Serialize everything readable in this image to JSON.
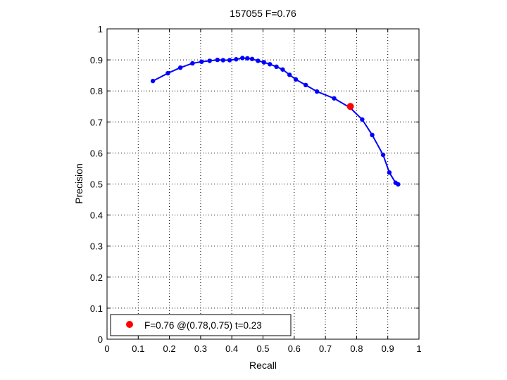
{
  "chart_data": {
    "type": "line",
    "title": "157055 F=0.76",
    "xlabel": "Recall",
    "ylabel": "Precision",
    "xlim": [
      0,
      1
    ],
    "ylim": [
      0,
      1
    ],
    "grid": true,
    "xticks": [
      0,
      0.1,
      0.2,
      0.3,
      0.4,
      0.5,
      0.6,
      0.7,
      0.8,
      0.9,
      1
    ],
    "yticks": [
      0,
      0.1,
      0.2,
      0.3,
      0.4,
      0.5,
      0.6,
      0.7,
      0.8,
      0.9,
      1
    ],
    "xtick_labels": [
      "0",
      "0.1",
      "0.2",
      "0.3",
      "0.4",
      "0.5",
      "0.6",
      "0.7",
      "0.8",
      "0.9",
      "1"
    ],
    "ytick_labels": [
      "0",
      "0.1",
      "0.2",
      "0.3",
      "0.4",
      "0.5",
      "0.6",
      "0.7",
      "0.8",
      "0.9",
      "1"
    ],
    "series": [
      {
        "color": "#0000ff",
        "marker": "dot",
        "x": [
          0.147,
          0.195,
          0.235,
          0.274,
          0.303,
          0.329,
          0.354,
          0.372,
          0.393,
          0.414,
          0.434,
          0.45,
          0.465,
          0.484,
          0.503,
          0.522,
          0.543,
          0.563,
          0.585,
          0.605,
          0.637,
          0.673,
          0.728,
          0.779,
          0.818,
          0.85,
          0.885,
          0.905,
          0.925,
          0.933
        ],
        "y": [
          0.832,
          0.857,
          0.875,
          0.889,
          0.894,
          0.897,
          0.9,
          0.899,
          0.899,
          0.902,
          0.906,
          0.905,
          0.903,
          0.897,
          0.892,
          0.886,
          0.878,
          0.869,
          0.852,
          0.837,
          0.819,
          0.798,
          0.776,
          0.746,
          0.708,
          0.658,
          0.594,
          0.537,
          0.504,
          0.499
        ]
      }
    ],
    "highlight": {
      "x": 0.78,
      "y": 0.75,
      "color": "#ff0000"
    },
    "legend": {
      "position": "bottom-left",
      "label": "F=0.76 @(0.78,0.75) t=0.23",
      "marker_color": "#ff0000"
    }
  }
}
